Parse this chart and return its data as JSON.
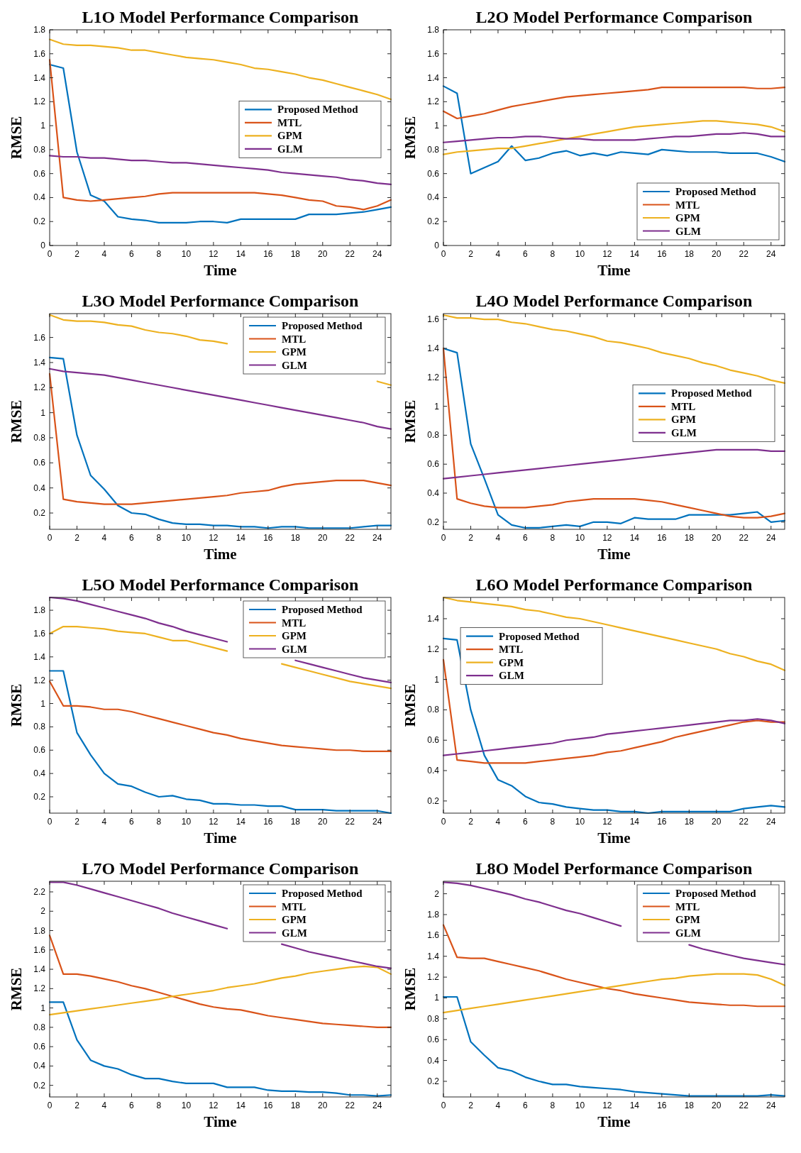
{
  "chart_data": [
    {
      "type": "line",
      "title": "L1O Model Performance Comparison",
      "xlabel": "Time",
      "ylabel": "RMSE",
      "legend": "right",
      "x": [
        0,
        1,
        2,
        3,
        4,
        5,
        6,
        7,
        8,
        9,
        10,
        11,
        12,
        13,
        14,
        15,
        16,
        17,
        18,
        19,
        20,
        21,
        22,
        23,
        24,
        25
      ],
      "xlim": [
        0,
        25
      ],
      "xticks": [
        0,
        2,
        4,
        6,
        8,
        10,
        12,
        14,
        16,
        18,
        20,
        22,
        24
      ],
      "ylim": [
        0,
        1.8
      ],
      "yticks": [
        0,
        0.2,
        0.4,
        0.6,
        0.8,
        1,
        1.2,
        1.4,
        1.6,
        1.8
      ],
      "series": [
        {
          "name": "Proposed Method",
          "color": "#0072bd",
          "values": [
            1.51,
            1.48,
            0.78,
            0.42,
            0.37,
            0.24,
            0.22,
            0.21,
            0.19,
            0.19,
            0.19,
            0.2,
            0.2,
            0.19,
            0.22,
            0.22,
            0.22,
            0.22,
            0.22,
            0.26,
            0.26,
            0.26,
            0.27,
            0.28,
            0.3,
            0.32
          ]
        },
        {
          "name": "MTL",
          "color": "#d95319",
          "values": [
            1.55,
            0.4,
            0.38,
            0.37,
            0.38,
            0.39,
            0.4,
            0.41,
            0.43,
            0.44,
            0.44,
            0.44,
            0.44,
            0.44,
            0.44,
            0.44,
            0.43,
            0.42,
            0.4,
            0.38,
            0.37,
            0.33,
            0.32,
            0.3,
            0.33,
            0.38
          ]
        },
        {
          "name": "GPM",
          "color": "#edb120",
          "values": [
            1.72,
            1.68,
            1.67,
            1.67,
            1.66,
            1.65,
            1.63,
            1.63,
            1.61,
            1.59,
            1.57,
            1.56,
            1.55,
            1.53,
            1.51,
            1.48,
            1.47,
            1.45,
            1.43,
            1.4,
            1.38,
            1.35,
            1.32,
            1.29,
            1.26,
            1.22
          ]
        },
        {
          "name": "GLM",
          "color": "#7e2f8e",
          "values": [
            0.75,
            0.74,
            0.74,
            0.73,
            0.73,
            0.72,
            0.71,
            0.71,
            0.7,
            0.69,
            0.69,
            0.68,
            0.67,
            0.66,
            0.65,
            0.64,
            0.63,
            0.61,
            0.6,
            0.59,
            0.58,
            0.57,
            0.55,
            0.54,
            0.52,
            0.51
          ]
        }
      ]
    },
    {
      "type": "line",
      "title": "L2O Model Performance Comparison",
      "xlabel": "Time",
      "ylabel": "RMSE",
      "legend": "bottom right",
      "x": [
        0,
        1,
        2,
        3,
        4,
        5,
        6,
        7,
        8,
        9,
        10,
        11,
        12,
        13,
        14,
        15,
        16,
        17,
        18,
        19,
        20,
        21,
        22,
        23,
        24,
        25
      ],
      "xlim": [
        0,
        25
      ],
      "xticks": [
        0,
        2,
        4,
        6,
        8,
        10,
        12,
        14,
        16,
        18,
        20,
        22,
        24
      ],
      "ylim": [
        0,
        1.8
      ],
      "yticks": [
        0,
        0.2,
        0.4,
        0.6,
        0.8,
        1,
        1.2,
        1.4,
        1.6,
        1.8
      ],
      "series": [
        {
          "name": "Proposed Method",
          "color": "#0072bd",
          "values": [
            1.33,
            1.27,
            0.6,
            0.65,
            0.7,
            0.83,
            0.71,
            0.73,
            0.77,
            0.79,
            0.75,
            0.77,
            0.75,
            0.78,
            0.77,
            0.76,
            0.8,
            0.79,
            0.78,
            0.78,
            0.78,
            0.77,
            0.77,
            0.77,
            0.74,
            0.7
          ]
        },
        {
          "name": "MTL",
          "color": "#d95319",
          "values": [
            1.12,
            1.06,
            1.08,
            1.1,
            1.13,
            1.16,
            1.18,
            1.2,
            1.22,
            1.24,
            1.25,
            1.26,
            1.27,
            1.28,
            1.29,
            1.3,
            1.32,
            1.32,
            1.32,
            1.32,
            1.32,
            1.32,
            1.32,
            1.31,
            1.31,
            1.32
          ]
        },
        {
          "name": "GPM",
          "color": "#edb120",
          "values": [
            0.76,
            0.78,
            0.79,
            0.8,
            0.81,
            0.81,
            0.83,
            0.85,
            0.87,
            0.89,
            0.91,
            0.93,
            0.95,
            0.97,
            0.99,
            1,
            1.01,
            1.02,
            1.03,
            1.04,
            1.04,
            1.03,
            1.02,
            1.01,
            0.99,
            0.95
          ]
        },
        {
          "name": "GLM",
          "color": "#7e2f8e",
          "values": [
            0.86,
            0.87,
            0.88,
            0.89,
            0.9,
            0.9,
            0.91,
            0.91,
            0.9,
            0.89,
            0.89,
            0.88,
            0.88,
            0.88,
            0.88,
            0.89,
            0.9,
            0.91,
            0.91,
            0.92,
            0.93,
            0.93,
            0.94,
            0.93,
            0.91,
            0.91
          ]
        }
      ]
    },
    {
      "type": "line",
      "title": "L3O Model Performance Comparison",
      "xlabel": "Time",
      "ylabel": "RMSE",
      "legend": "top right",
      "x": [
        0,
        1,
        2,
        3,
        4,
        5,
        6,
        7,
        8,
        9,
        10,
        11,
        12,
        13,
        14,
        15,
        16,
        17,
        18,
        19,
        20,
        21,
        22,
        23,
        24,
        25
      ],
      "xlim": [
        0,
        25
      ],
      "xticks": [
        0,
        2,
        4,
        6,
        8,
        10,
        12,
        14,
        16,
        18,
        20,
        22,
        24
      ],
      "ylim": [
        0.07,
        1.79
      ],
      "yticks": [
        0.2,
        0.4,
        0.6,
        0.8,
        1,
        1.2,
        1.4,
        1.6
      ],
      "series": [
        {
          "name": "Proposed Method",
          "color": "#0072bd",
          "values": [
            1.44,
            1.43,
            0.82,
            0.5,
            0.39,
            0.26,
            0.2,
            0.19,
            0.15,
            0.12,
            0.11,
            0.11,
            0.1,
            0.1,
            0.09,
            0.09,
            0.08,
            0.09,
            0.09,
            0.08,
            0.08,
            0.08,
            0.08,
            0.09,
            0.1,
            0.1
          ]
        },
        {
          "name": "MTL",
          "color": "#d95319",
          "values": [
            1.31,
            0.31,
            0.29,
            0.28,
            0.27,
            0.27,
            0.27,
            0.28,
            0.29,
            0.3,
            0.31,
            0.32,
            0.33,
            0.34,
            0.36,
            0.37,
            0.38,
            0.41,
            0.43,
            0.44,
            0.45,
            0.46,
            0.46,
            0.46,
            0.44,
            0.42
          ]
        },
        {
          "name": "GPM",
          "color": "#edb120",
          "values": [
            1.78,
            1.74,
            1.73,
            1.73,
            1.72,
            1.7,
            1.69,
            1.66,
            1.64,
            1.63,
            1.61,
            1.58,
            1.57,
            1.55,
            null,
            null,
            null,
            null,
            null,
            null,
            null,
            null,
            null,
            null,
            1.25,
            1.22
          ]
        },
        {
          "name": "GLM",
          "color": "#7e2f8e",
          "values": [
            1.35,
            1.33,
            1.32,
            1.31,
            1.3,
            1.28,
            1.26,
            1.24,
            1.22,
            1.2,
            1.18,
            1.16,
            1.14,
            1.12,
            1.1,
            1.08,
            1.06,
            1.04,
            1.02,
            1,
            0.98,
            0.96,
            0.94,
            0.92,
            0.89,
            0.87
          ]
        }
      ]
    },
    {
      "type": "line",
      "title": "L4O Model Performance Comparison",
      "xlabel": "Time",
      "ylabel": "RMSE",
      "legend": "right",
      "x": [
        0,
        1,
        2,
        3,
        4,
        5,
        6,
        7,
        8,
        9,
        10,
        11,
        12,
        13,
        14,
        15,
        16,
        17,
        18,
        19,
        20,
        21,
        22,
        23,
        24,
        25
      ],
      "xlim": [
        0,
        25
      ],
      "xticks": [
        0,
        2,
        4,
        6,
        8,
        10,
        12,
        14,
        16,
        18,
        20,
        22,
        24
      ],
      "ylim": [
        0.15,
        1.64
      ],
      "yticks": [
        0.2,
        0.4,
        0.6,
        0.8,
        1,
        1.2,
        1.4,
        1.6
      ],
      "series": [
        {
          "name": "Proposed Method",
          "color": "#0072bd",
          "values": [
            1.4,
            1.37,
            0.74,
            0.5,
            0.25,
            0.18,
            0.16,
            0.16,
            0.17,
            0.18,
            0.17,
            0.2,
            0.2,
            0.19,
            0.23,
            0.22,
            0.22,
            0.22,
            0.25,
            0.25,
            0.25,
            0.25,
            0.26,
            0.27,
            0.2,
            0.21
          ]
        },
        {
          "name": "MTL",
          "color": "#d95319",
          "values": [
            1.4,
            0.36,
            0.33,
            0.31,
            0.3,
            0.3,
            0.3,
            0.31,
            0.32,
            0.34,
            0.35,
            0.36,
            0.36,
            0.36,
            0.36,
            0.35,
            0.34,
            0.32,
            0.3,
            0.28,
            0.26,
            0.24,
            0.23,
            0.23,
            0.24,
            0.26
          ]
        },
        {
          "name": "GPM",
          "color": "#edb120",
          "values": [
            1.63,
            1.61,
            1.61,
            1.6,
            1.6,
            1.58,
            1.57,
            1.55,
            1.53,
            1.52,
            1.5,
            1.48,
            1.45,
            1.44,
            1.42,
            1.4,
            1.37,
            1.35,
            1.33,
            1.3,
            1.28,
            1.25,
            1.23,
            1.21,
            1.18,
            1.16
          ]
        },
        {
          "name": "GLM",
          "color": "#7e2f8e",
          "values": [
            0.5,
            0.51,
            0.52,
            0.53,
            0.54,
            0.55,
            0.56,
            0.57,
            0.58,
            0.59,
            0.6,
            0.61,
            0.62,
            0.63,
            0.64,
            0.65,
            0.66,
            0.67,
            0.68,
            0.69,
            0.7,
            0.7,
            0.7,
            0.7,
            0.69,
            0.69
          ]
        }
      ]
    },
    {
      "type": "line",
      "title": "L5O Model Performance Comparison",
      "xlabel": "Time",
      "ylabel": "RMSE",
      "legend": "top right",
      "x": [
        0,
        1,
        2,
        3,
        4,
        5,
        6,
        7,
        8,
        9,
        10,
        11,
        12,
        13,
        14,
        15,
        16,
        17,
        18,
        19,
        20,
        21,
        22,
        23,
        24,
        25
      ],
      "xlim": [
        0,
        25
      ],
      "xticks": [
        0,
        2,
        4,
        6,
        8,
        10,
        12,
        14,
        16,
        18,
        20,
        22,
        24
      ],
      "ylim": [
        0.06,
        1.91
      ],
      "yticks": [
        0.2,
        0.4,
        0.6,
        0.8,
        1,
        1.2,
        1.4,
        1.6,
        1.8
      ],
      "series": [
        {
          "name": "Proposed Method",
          "color": "#0072bd",
          "values": [
            1.28,
            1.28,
            0.75,
            0.56,
            0.4,
            0.31,
            0.29,
            0.24,
            0.2,
            0.21,
            0.18,
            0.17,
            0.14,
            0.14,
            0.13,
            0.13,
            0.12,
            0.12,
            0.09,
            0.09,
            0.09,
            0.08,
            0.08,
            0.08,
            0.08,
            0.06
          ]
        },
        {
          "name": "MTL",
          "color": "#d95319",
          "values": [
            1.19,
            0.98,
            0.98,
            0.97,
            0.95,
            0.95,
            0.93,
            0.9,
            0.87,
            0.84,
            0.81,
            0.78,
            0.75,
            0.73,
            0.7,
            0.68,
            0.66,
            0.64,
            0.63,
            0.62,
            0.61,
            0.6,
            0.6,
            0.59,
            0.59,
            0.59
          ]
        },
        {
          "name": "GPM",
          "color": "#edb120",
          "values": [
            1.6,
            1.66,
            1.66,
            1.65,
            1.64,
            1.62,
            1.61,
            1.6,
            1.57,
            1.54,
            1.54,
            1.51,
            1.48,
            1.45,
            null,
            null,
            null,
            1.34,
            1.31,
            1.28,
            1.25,
            1.22,
            1.19,
            1.17,
            1.15,
            1.13
          ]
        },
        {
          "name": "GLM",
          "color": "#7e2f8e",
          "values": [
            1.91,
            1.9,
            1.88,
            1.85,
            1.82,
            1.79,
            1.76,
            1.73,
            1.69,
            1.66,
            1.62,
            1.59,
            1.56,
            1.53,
            null,
            null,
            null,
            null,
            1.37,
            1.34,
            1.31,
            1.28,
            1.25,
            1.22,
            1.2,
            1.18
          ]
        }
      ]
    },
    {
      "type": "line",
      "title": "L6O Model Performance Comparison",
      "xlabel": "Time",
      "ylabel": "RMSE",
      "legend": "top left",
      "x": [
        0,
        1,
        2,
        3,
        4,
        5,
        6,
        7,
        8,
        9,
        10,
        11,
        12,
        13,
        14,
        15,
        16,
        17,
        18,
        19,
        20,
        21,
        22,
        23,
        24,
        25
      ],
      "xlim": [
        0,
        25
      ],
      "xticks": [
        0,
        2,
        4,
        6,
        8,
        10,
        12,
        14,
        16,
        18,
        20,
        22,
        24
      ],
      "ylim": [
        0.12,
        1.54
      ],
      "yticks": [
        0.2,
        0.4,
        0.6,
        0.8,
        1,
        1.2,
        1.4
      ],
      "series": [
        {
          "name": "Proposed Method",
          "color": "#0072bd",
          "values": [
            1.27,
            1.26,
            0.8,
            0.5,
            0.34,
            0.3,
            0.23,
            0.19,
            0.18,
            0.16,
            0.15,
            0.14,
            0.14,
            0.13,
            0.13,
            0.12,
            0.13,
            0.13,
            0.13,
            0.13,
            0.13,
            0.13,
            0.15,
            0.16,
            0.17,
            0.16
          ]
        },
        {
          "name": "MTL",
          "color": "#d95319",
          "values": [
            1.13,
            0.47,
            0.46,
            0.45,
            0.45,
            0.45,
            0.45,
            0.46,
            0.47,
            0.48,
            0.49,
            0.5,
            0.52,
            0.53,
            0.55,
            0.57,
            0.59,
            0.62,
            0.64,
            0.66,
            0.68,
            0.7,
            0.72,
            0.73,
            0.72,
            0.72
          ]
        },
        {
          "name": "GPM",
          "color": "#edb120",
          "values": [
            1.54,
            1.52,
            1.51,
            1.5,
            1.49,
            1.48,
            1.46,
            1.45,
            1.43,
            1.41,
            1.4,
            1.38,
            1.36,
            1.34,
            1.32,
            1.3,
            1.28,
            1.26,
            1.24,
            1.22,
            1.2,
            1.17,
            1.15,
            1.12,
            1.1,
            1.06
          ]
        },
        {
          "name": "GLM",
          "color": "#7e2f8e",
          "values": [
            0.5,
            0.51,
            0.52,
            0.53,
            0.54,
            0.55,
            0.56,
            0.57,
            0.58,
            0.6,
            0.61,
            0.62,
            0.64,
            0.65,
            0.66,
            0.67,
            0.68,
            0.69,
            0.7,
            0.71,
            0.72,
            0.73,
            0.73,
            0.74,
            0.73,
            0.71
          ]
        }
      ]
    },
    {
      "type": "line",
      "title": "L7O Model Performance Comparison",
      "xlabel": "Time",
      "ylabel": "RMSE",
      "legend": "top right",
      "x": [
        0,
        1,
        2,
        3,
        4,
        5,
        6,
        7,
        8,
        9,
        10,
        11,
        12,
        13,
        14,
        15,
        16,
        17,
        18,
        19,
        20,
        21,
        22,
        23,
        24,
        25
      ],
      "xlim": [
        0,
        25
      ],
      "xticks": [
        0,
        2,
        4,
        6,
        8,
        10,
        12,
        14,
        16,
        18,
        20,
        22,
        24
      ],
      "ylim": [
        0.08,
        2.31
      ],
      "yticks": [
        0.2,
        0.4,
        0.6,
        0.8,
        1,
        1.2,
        1.4,
        1.6,
        1.8,
        2,
        2.2
      ],
      "series": [
        {
          "name": "Proposed Method",
          "color": "#0072bd",
          "values": [
            1.06,
            1.06,
            0.67,
            0.46,
            0.4,
            0.37,
            0.31,
            0.27,
            0.27,
            0.24,
            0.22,
            0.22,
            0.22,
            0.18,
            0.18,
            0.18,
            0.15,
            0.14,
            0.14,
            0.13,
            0.13,
            0.12,
            0.1,
            0.1,
            0.09,
            0.1
          ]
        },
        {
          "name": "MTL",
          "color": "#d95319",
          "values": [
            1.75,
            1.35,
            1.35,
            1.33,
            1.3,
            1.27,
            1.23,
            1.2,
            1.16,
            1.12,
            1.08,
            1.04,
            1.01,
            0.99,
            0.98,
            0.95,
            0.92,
            0.9,
            0.88,
            0.86,
            0.84,
            0.83,
            0.82,
            0.81,
            0.8,
            0.8
          ]
        },
        {
          "name": "GPM",
          "color": "#edb120",
          "values": [
            0.93,
            0.95,
            0.97,
            0.99,
            1.01,
            1.03,
            1.05,
            1.07,
            1.09,
            1.12,
            1.14,
            1.16,
            1.18,
            1.21,
            1.23,
            1.25,
            1.28,
            1.31,
            1.33,
            1.36,
            1.38,
            1.4,
            1.42,
            1.43,
            1.42,
            1.35
          ]
        },
        {
          "name": "GLM",
          "color": "#7e2f8e",
          "values": [
            2.3,
            2.3,
            2.27,
            2.23,
            2.19,
            2.15,
            2.11,
            2.07,
            2.03,
            1.98,
            1.94,
            1.9,
            1.86,
            1.82,
            null,
            null,
            null,
            1.66,
            1.62,
            1.58,
            1.55,
            1.52,
            1.49,
            1.46,
            1.43,
            1.41
          ]
        }
      ]
    },
    {
      "type": "line",
      "title": "L8O Model Performance Comparison",
      "xlabel": "Time",
      "ylabel": "RMSE",
      "legend": "top right",
      "x": [
        0,
        1,
        2,
        3,
        4,
        5,
        6,
        7,
        8,
        9,
        10,
        11,
        12,
        13,
        14,
        15,
        16,
        17,
        18,
        19,
        20,
        21,
        22,
        23,
        24,
        25
      ],
      "xlim": [
        0,
        25
      ],
      "xticks": [
        0,
        2,
        4,
        6,
        8,
        10,
        12,
        14,
        16,
        18,
        20,
        22,
        24
      ],
      "ylim": [
        0.05,
        2.12
      ],
      "yticks": [
        0.2,
        0.4,
        0.6,
        0.8,
        1,
        1.2,
        1.4,
        1.6,
        1.8,
        2
      ],
      "series": [
        {
          "name": "Proposed Method",
          "color": "#0072bd",
          "values": [
            1.01,
            1.01,
            0.58,
            0.45,
            0.33,
            0.3,
            0.24,
            0.2,
            0.17,
            0.17,
            0.15,
            0.14,
            0.13,
            0.12,
            0.1,
            0.09,
            0.08,
            0.07,
            0.06,
            0.06,
            0.06,
            0.06,
            0.06,
            0.06,
            0.07,
            0.06
          ]
        },
        {
          "name": "MTL",
          "color": "#d95319",
          "values": [
            1.7,
            1.39,
            1.38,
            1.38,
            1.35,
            1.32,
            1.29,
            1.26,
            1.22,
            1.18,
            1.15,
            1.12,
            1.09,
            1.07,
            1.04,
            1.02,
            1,
            0.98,
            0.96,
            0.95,
            0.94,
            0.93,
            0.93,
            0.92,
            0.92,
            0.92
          ]
        },
        {
          "name": "GPM",
          "color": "#edb120",
          "values": [
            0.86,
            0.88,
            0.9,
            0.92,
            0.94,
            0.96,
            0.98,
            1,
            1.02,
            1.04,
            1.06,
            1.08,
            1.1,
            1.12,
            1.14,
            1.16,
            1.18,
            1.19,
            1.21,
            1.22,
            1.23,
            1.23,
            1.23,
            1.22,
            1.18,
            1.12
          ]
        },
        {
          "name": "GLM",
          "color": "#7e2f8e",
          "values": [
            2.11,
            2.1,
            2.08,
            2.05,
            2.02,
            1.99,
            1.95,
            1.92,
            1.88,
            1.84,
            1.81,
            1.77,
            1.73,
            1.69,
            null,
            null,
            null,
            null,
            1.51,
            1.47,
            1.44,
            1.41,
            1.38,
            1.36,
            1.34,
            1.32
          ]
        }
      ]
    }
  ]
}
